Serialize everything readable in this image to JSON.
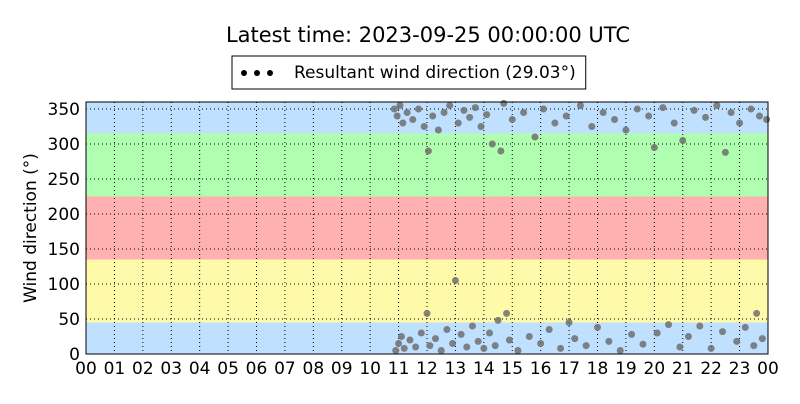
{
  "chart_data": {
    "type": "scatter",
    "title": "Latest time: 2023-09-25 00:00:00 UTC",
    "ylabel": "Wind direction (°)",
    "xlim": [
      0,
      24
    ],
    "ylim": [
      0,
      360
    ],
    "xticks": [
      {
        "value": 0,
        "label": "00"
      },
      {
        "value": 1,
        "label": "01"
      },
      {
        "value": 2,
        "label": "02"
      },
      {
        "value": 3,
        "label": "03"
      },
      {
        "value": 4,
        "label": "04"
      },
      {
        "value": 5,
        "label": "05"
      },
      {
        "value": 6,
        "label": "06"
      },
      {
        "value": 7,
        "label": "07"
      },
      {
        "value": 8,
        "label": "08"
      },
      {
        "value": 9,
        "label": "09"
      },
      10,
      11,
      12,
      13,
      14,
      15,
      16,
      17,
      18,
      19,
      20,
      21,
      22,
      23,
      {
        "value": 24,
        "label": "00"
      }
    ],
    "yticks": [
      0,
      50,
      100,
      150,
      200,
      250,
      300,
      350
    ],
    "grid": true,
    "bands": [
      {
        "from": 0,
        "to": 45,
        "color": "#bfe0ff"
      },
      {
        "from": 45,
        "to": 135,
        "color": "#fffaaa"
      },
      {
        "from": 135,
        "to": 225,
        "color": "#ffb0b0"
      },
      {
        "from": 225,
        "to": 315,
        "color": "#b0ffb0"
      },
      {
        "from": 315,
        "to": 360,
        "color": "#bfe0ff"
      }
    ],
    "legend": "top",
    "series": [
      {
        "name": "Resultant wind direction (29.03°)",
        "color": "#6e6e6e",
        "x": [
          10.85,
          10.9,
          10.95,
          11.0,
          11.05,
          11.1,
          11.15,
          11.2,
          11.3,
          11.4,
          11.5,
          11.6,
          11.7,
          11.8,
          11.9,
          12.0,
          12.05,
          12.1,
          12.2,
          12.3,
          12.4,
          12.5,
          12.6,
          12.7,
          12.8,
          12.9,
          13.0,
          13.1,
          13.2,
          13.3,
          13.4,
          13.5,
          13.6,
          13.7,
          13.8,
          13.9,
          14.0,
          14.1,
          14.2,
          14.3,
          14.4,
          14.5,
          14.6,
          14.7,
          14.8,
          14.9,
          15.0,
          15.2,
          15.4,
          15.6,
          15.8,
          16.0,
          16.1,
          16.3,
          16.5,
          16.7,
          16.9,
          17.0,
          17.2,
          17.4,
          17.6,
          17.8,
          18.0,
          18.2,
          18.4,
          18.6,
          18.8,
          19.0,
          19.2,
          19.4,
          19.6,
          19.8,
          20.0,
          20.1,
          20.3,
          20.5,
          20.7,
          20.9,
          21.0,
          21.2,
          21.4,
          21.6,
          21.8,
          22.0,
          22.2,
          22.4,
          22.5,
          22.7,
          22.9,
          23.0,
          23.2,
          23.4,
          23.5,
          23.6,
          23.7,
          23.8,
          23.95
        ],
        "values": [
          350,
          5,
          340,
          15,
          355,
          25,
          330,
          8,
          345,
          20,
          335,
          10,
          350,
          30,
          325,
          58,
          290,
          12,
          340,
          22,
          320,
          5,
          345,
          35,
          355,
          15,
          105,
          330,
          28,
          348,
          10,
          338,
          40,
          352,
          18,
          325,
          8,
          342,
          30,
          300,
          12,
          48,
          290,
          358,
          58,
          20,
          335,
          5,
          345,
          25,
          310,
          15,
          350,
          35,
          330,
          8,
          340,
          45,
          22,
          355,
          12,
          325,
          38,
          345,
          18,
          335,
          5,
          320,
          28,
          350,
          14,
          340,
          295,
          30,
          352,
          42,
          330,
          10,
          305,
          25,
          348,
          40,
          338,
          8,
          355,
          32,
          288,
          345,
          18,
          330,
          38,
          350,
          12,
          58,
          340,
          22,
          335
        ]
      }
    ]
  }
}
